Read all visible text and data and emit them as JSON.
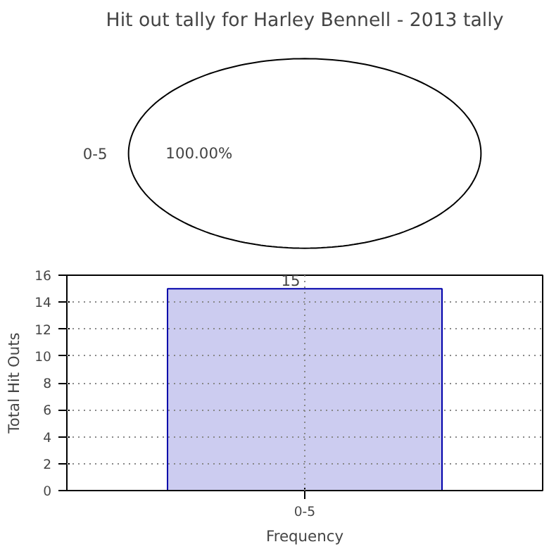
{
  "chart_data": [
    {
      "type": "pie",
      "title": "Hit out tally for Harley Bennell - 2013 tally",
      "categories": [
        "0-5"
      ],
      "values": [
        100
      ],
      "colors": [
        "#ffffff"
      ],
      "value_labels": [
        "100.00%"
      ]
    },
    {
      "type": "bar",
      "categories": [
        "0-5"
      ],
      "values": [
        15
      ],
      "color": "#ccccf0",
      "ylim": [
        0,
        16
      ],
      "yticks": [
        0,
        2,
        4,
        6,
        8,
        10,
        12,
        14,
        16
      ],
      "xlabel": "Frequency",
      "ylabel": "Total Hit Outs",
      "grid": true,
      "data_labels": true
    }
  ]
}
